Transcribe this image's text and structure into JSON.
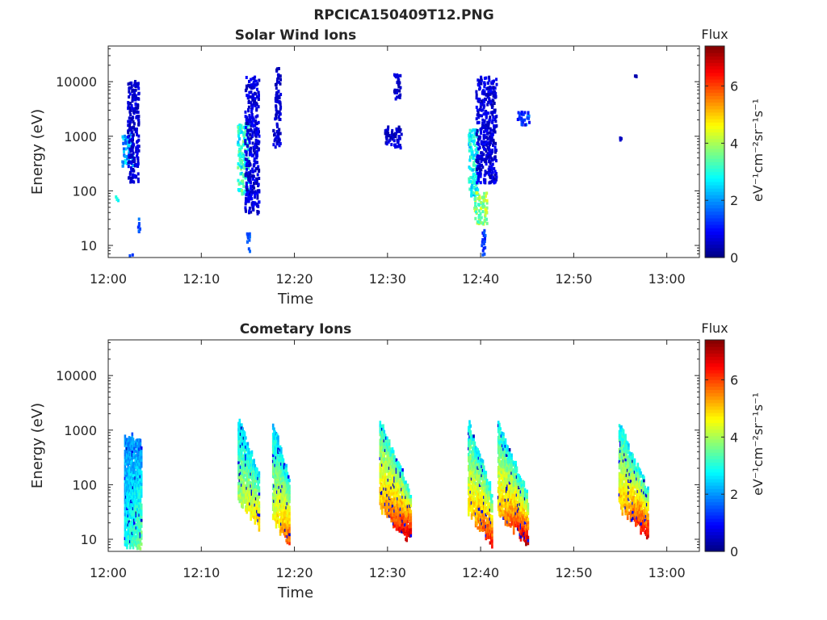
{
  "figure": {
    "title": "RPCICA150409T12.PNG"
  },
  "chart_data": [
    {
      "type": "heatmap",
      "title": "Solar Wind Ions",
      "xlabel": "Time",
      "ylabel": "Energy (eV)",
      "x_ticks": [
        "12:00",
        "12:10",
        "12:20",
        "12:30",
        "12:40",
        "12:50",
        "13:00"
      ],
      "xlim_minutes": [
        0,
        63.5
      ],
      "y_scale": "log",
      "y_ticks": [
        10,
        100,
        1000,
        10000
      ],
      "y_tick_labels": [
        "10",
        "100",
        "1000",
        "10000"
      ],
      "ylim": [
        6,
        45000
      ],
      "colorbar": {
        "label": "Flux",
        "unit_label": "eV⁻¹cm⁻²sr⁻¹s⁻¹",
        "ticks": [
          0,
          2,
          4,
          6
        ],
        "range": [
          0,
          7.4
        ],
        "colormap": "jet"
      },
      "clusters": [
        {
          "t": [
            1.4,
            2.6
          ],
          "e": [
            300,
            1200
          ],
          "flux": [
            1.5,
            2.8
          ]
        },
        {
          "t": [
            2.0,
            3.2
          ],
          "e": [
            150,
            12000
          ],
          "flux": [
            0.3,
            0.9
          ]
        },
        {
          "t": [
            0.6,
            1.0
          ],
          "e": [
            70,
            90
          ],
          "flux": [
            2.5,
            3.0
          ]
        },
        {
          "t": [
            2.2,
            2.6
          ],
          "e": [
            6,
            8
          ],
          "flux": [
            1.0,
            1.5
          ]
        },
        {
          "t": [
            3.1,
            3.3
          ],
          "e": [
            15,
            40
          ],
          "flux": [
            1.0,
            2.0
          ]
        },
        {
          "t": [
            13.8,
            15.0
          ],
          "e": [
            90,
            1800
          ],
          "flux": [
            2.3,
            3.8
          ]
        },
        {
          "t": [
            14.6,
            16.1
          ],
          "e": [
            40,
            13000
          ],
          "flux": [
            0.3,
            1.0
          ]
        },
        {
          "t": [
            14.8,
            15.1
          ],
          "e": [
            6,
            20
          ],
          "flux": [
            1.2,
            1.8
          ]
        },
        {
          "t": [
            17.8,
            18.4
          ],
          "e": [
            1200,
            19000
          ],
          "flux": [
            0.3,
            0.8
          ]
        },
        {
          "t": [
            17.6,
            18.4
          ],
          "e": [
            650,
            1500
          ],
          "flux": [
            0.3,
            0.8
          ]
        },
        {
          "t": [
            29.6,
            31.4
          ],
          "e": [
            650,
            1600
          ],
          "flux": [
            0.3,
            0.8
          ]
        },
        {
          "t": [
            30.6,
            31.3
          ],
          "e": [
            5000,
            16000
          ],
          "flux": [
            0.3,
            0.8
          ]
        },
        {
          "t": [
            38.6,
            39.6
          ],
          "e": [
            80,
            1500
          ],
          "flux": [
            2.2,
            3.4
          ]
        },
        {
          "t": [
            39.4,
            41.6
          ],
          "e": [
            150,
            13000
          ],
          "flux": [
            0.3,
            1.0
          ]
        },
        {
          "t": [
            39.2,
            40.6
          ],
          "e": [
            25,
            100
          ],
          "flux": [
            3.0,
            4.6
          ]
        },
        {
          "t": [
            40.0,
            40.4
          ],
          "e": [
            6,
            20
          ],
          "flux": [
            1.0,
            1.6
          ]
        },
        {
          "t": [
            43.8,
            45.2
          ],
          "e": [
            1700,
            3000
          ],
          "flux": [
            0.6,
            2.2
          ]
        },
        {
          "t": [
            54.8,
            55.0
          ],
          "e": [
            900,
            1000
          ],
          "flux": [
            0.3,
            0.6
          ]
        },
        {
          "t": [
            56.4,
            56.7
          ],
          "e": [
            13000,
            14000
          ],
          "flux": [
            0.3,
            0.6
          ]
        }
      ]
    },
    {
      "type": "heatmap",
      "title": "Cometary Ions",
      "xlabel": "Time",
      "ylabel": "Energy (eV)",
      "x_ticks": [
        "12:00",
        "12:10",
        "12:20",
        "12:30",
        "12:40",
        "12:50",
        "13:00"
      ],
      "xlim_minutes": [
        0,
        63.5
      ],
      "y_scale": "log",
      "y_ticks": [
        10,
        100,
        1000,
        10000
      ],
      "y_tick_labels": [
        "10",
        "100",
        "1000",
        "10000"
      ],
      "ylim": [
        6,
        45000
      ],
      "colorbar": {
        "label": "Flux",
        "unit_label": "eV⁻¹cm⁻²sr⁻¹s⁻¹",
        "ticks": [
          0,
          2,
          4,
          6
        ],
        "range": [
          0,
          7.4
        ],
        "colormap": "jet"
      },
      "bursts": [
        {
          "t0": 1.7,
          "t1": 3.5,
          "e_top": 1100,
          "e_bot": 6,
          "slope": 0.15,
          "fmax": 3.6,
          "fmin": 1.8
        },
        {
          "t0": 13.9,
          "t1": 16.2,
          "e_top": 2000,
          "e_bot": 15,
          "slope": 0.9,
          "fmax": 5.2,
          "fmin": 2.4
        },
        {
          "t0": 17.6,
          "t1": 19.4,
          "e_top": 1800,
          "e_bot": 7,
          "slope": 0.8,
          "fmax": 6.0,
          "fmin": 2.4
        },
        {
          "t0": 29.1,
          "t1": 32.4,
          "e_top": 2000,
          "e_bot": 8,
          "slope": 1.0,
          "fmax": 7.1,
          "fmin": 2.8
        },
        {
          "t0": 38.6,
          "t1": 41.2,
          "e_top": 1800,
          "e_bot": 7,
          "slope": 1.0,
          "fmax": 6.6,
          "fmin": 2.6
        },
        {
          "t0": 41.8,
          "t1": 45.0,
          "e_top": 1800,
          "e_bot": 7,
          "slope": 1.0,
          "fmax": 7.0,
          "fmin": 2.6
        },
        {
          "t0": 54.8,
          "t1": 57.9,
          "e_top": 1600,
          "e_bot": 10,
          "slope": 1.0,
          "fmax": 6.8,
          "fmin": 2.6
        }
      ]
    }
  ]
}
